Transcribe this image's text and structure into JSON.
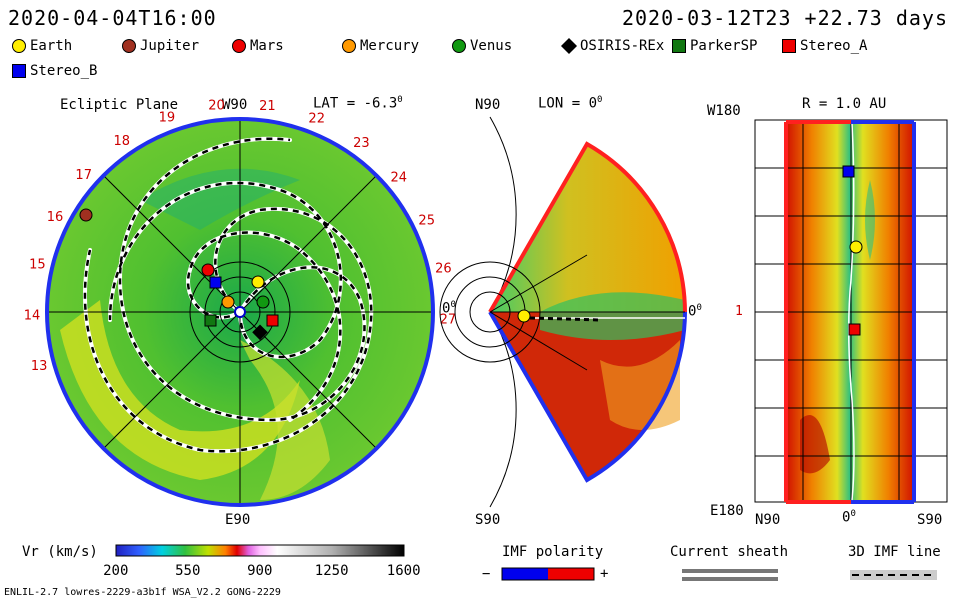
{
  "header": {
    "date_left": "2020-04-04T16:00",
    "date_right": "2020-03-12T23 +22.73 days"
  },
  "legend": [
    {
      "label": "Earth",
      "color": "#ffee00",
      "shape": "circle"
    },
    {
      "label": "Jupiter",
      "color": "#a03020",
      "shape": "circle"
    },
    {
      "label": "Mars",
      "color": "#ee0000",
      "shape": "circle"
    },
    {
      "label": "Mercury",
      "color": "#ff9900",
      "shape": "circle"
    },
    {
      "label": "Venus",
      "color": "#119911",
      "shape": "circle"
    },
    {
      "label": "OSIRIS-REx",
      "color": "#000000",
      "shape": "diamond"
    },
    {
      "label": "ParkerSP",
      "color": "#117711",
      "shape": "square"
    },
    {
      "label": "Stereo_A",
      "color": "#ee0000",
      "shape": "square"
    },
    {
      "label": "Stereo_B",
      "color": "#0000ee",
      "shape": "square"
    }
  ],
  "panel_left": {
    "title": "Ecliptic Plane",
    "top": "W90",
    "lat": "LAT = -6.3",
    "lat_sup": "0",
    "right": "0",
    "right_sup": "0",
    "bottom": "E90",
    "ticks": [
      "13",
      "14",
      "15",
      "16",
      "17",
      "18",
      "19",
      "20",
      "21",
      "22",
      "23",
      "24",
      "25",
      "26",
      "27"
    ]
  },
  "panel_mid": {
    "top_left": "N90",
    "lon": "LON = 0",
    "lon_sup": "0",
    "right": "0",
    "right_sup": "0",
    "bottom": "S90"
  },
  "panel_right": {
    "top_left": "W180",
    "r": "R = 1.0 AU",
    "mid_left": "1",
    "bottom_left": "E180",
    "bottom_n": "N90",
    "bottom_zero": "0",
    "bottom_zero_sup": "0",
    "bottom_s": "S90"
  },
  "colorbar": {
    "label": "Vr (km/s)",
    "ticks": [
      "200",
      "550",
      "900",
      "1250",
      "1600"
    ]
  },
  "imf": {
    "title": "IMF polarity",
    "minus": "−",
    "plus": "+"
  },
  "current_sheath": {
    "title": "Current sheath"
  },
  "imf3d": {
    "title": "3D IMF line"
  },
  "footer": {
    "left": "ENLIL-2.7 lowres-2229-a3b1f WSA_V2.2 GONG-2229"
  }
}
